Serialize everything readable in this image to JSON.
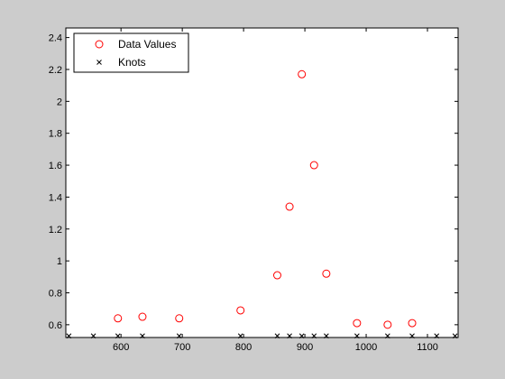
{
  "chart_data": {
    "type": "scatter",
    "title": "",
    "xlabel": "",
    "ylabel": "",
    "xlim": [
      510,
      1150
    ],
    "ylim": [
      0.52,
      2.46
    ],
    "xticks": [
      600,
      700,
      800,
      900,
      1000,
      1100
    ],
    "xtick_labels": [
      "600",
      "700",
      "800",
      "900",
      "1000",
      "1100"
    ],
    "yticks": [
      0.6,
      0.8,
      1.0,
      1.2,
      1.4,
      1.6,
      1.8,
      2.0,
      2.2,
      2.4
    ],
    "ytick_labels": [
      "0.6",
      "0.8",
      "1",
      "1.2",
      "1.4",
      "1.6",
      "1.8",
      "2",
      "2.2",
      "2.4"
    ],
    "legend_position": "top-left",
    "grid": false,
    "series": [
      {
        "name": "Data Values",
        "marker": "circle",
        "color": "#ff0000",
        "x": [
          595,
          635,
          695,
          795,
          855,
          875,
          895,
          915,
          935,
          985,
          1035,
          1075
        ],
        "y": [
          0.64,
          0.65,
          0.64,
          0.69,
          0.91,
          1.34,
          2.17,
          1.6,
          0.92,
          0.61,
          0.6,
          0.61
        ]
      },
      {
        "name": "Knots",
        "marker": "x",
        "color": "#000000",
        "x": [
          515,
          555,
          595,
          635,
          695,
          795,
          855,
          875,
          895,
          915,
          935,
          985,
          1035,
          1075,
          1115,
          1145
        ],
        "y": [
          0.53,
          0.53,
          0.53,
          0.53,
          0.53,
          0.53,
          0.53,
          0.53,
          0.53,
          0.53,
          0.53,
          0.53,
          0.53,
          0.53,
          0.53,
          0.53
        ]
      }
    ]
  }
}
